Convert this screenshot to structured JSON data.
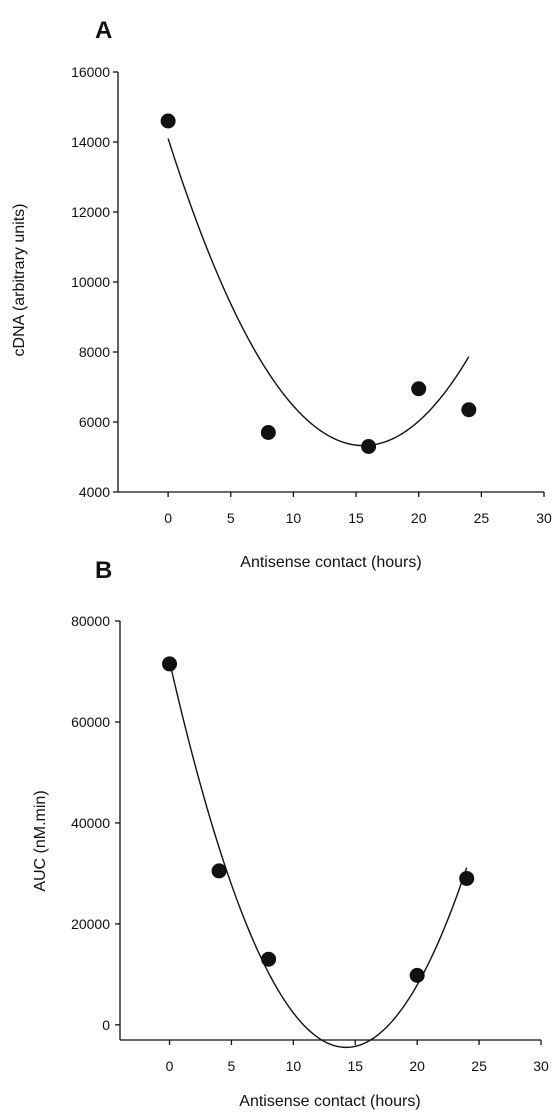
{
  "chart_data": [
    {
      "panel_label": "A",
      "type": "scatter",
      "xlabel": "Antisense contact (hours)",
      "ylabel": "cDNA (arbitrary units)",
      "xlim": [
        -4,
        30
      ],
      "ylim": [
        4000,
        16000
      ],
      "xticks": [
        0,
        5,
        10,
        15,
        20,
        25,
        30
      ],
      "yticks": [
        4000,
        6000,
        8000,
        10000,
        12000,
        14000,
        16000
      ],
      "points": {
        "x": [
          0,
          8,
          16,
          20,
          24
        ],
        "y": [
          14600,
          5700,
          5300,
          6950,
          6350
        ]
      },
      "fit": {
        "kind": "quadratic",
        "x_range": [
          0,
          24
        ],
        "coefficients": {
          "a": 36.05,
          "b": -1124.8,
          "c": 14100
        }
      },
      "grid": false
    },
    {
      "panel_label": "B",
      "type": "scatter",
      "xlabel": "Antisense contact (hours)",
      "ylabel": "AUC (nM.min)",
      "xlim": [
        -4,
        30
      ],
      "ylim": [
        -3000,
        80000
      ],
      "xticks": [
        0,
        5,
        10,
        15,
        20,
        25,
        30
      ],
      "yticks": [
        0,
        20000,
        40000,
        60000,
        80000
      ],
      "points": {
        "x": [
          0,
          4,
          8,
          20,
          24
        ],
        "y": [
          71500,
          30500,
          13000,
          9800,
          29000
        ]
      },
      "fit": {
        "kind": "quadratic",
        "x_range": [
          0,
          24
        ],
        "coefficients": {
          "a": 375.8,
          "b": -10721,
          "c": 72000
        }
      },
      "grid": false
    }
  ]
}
